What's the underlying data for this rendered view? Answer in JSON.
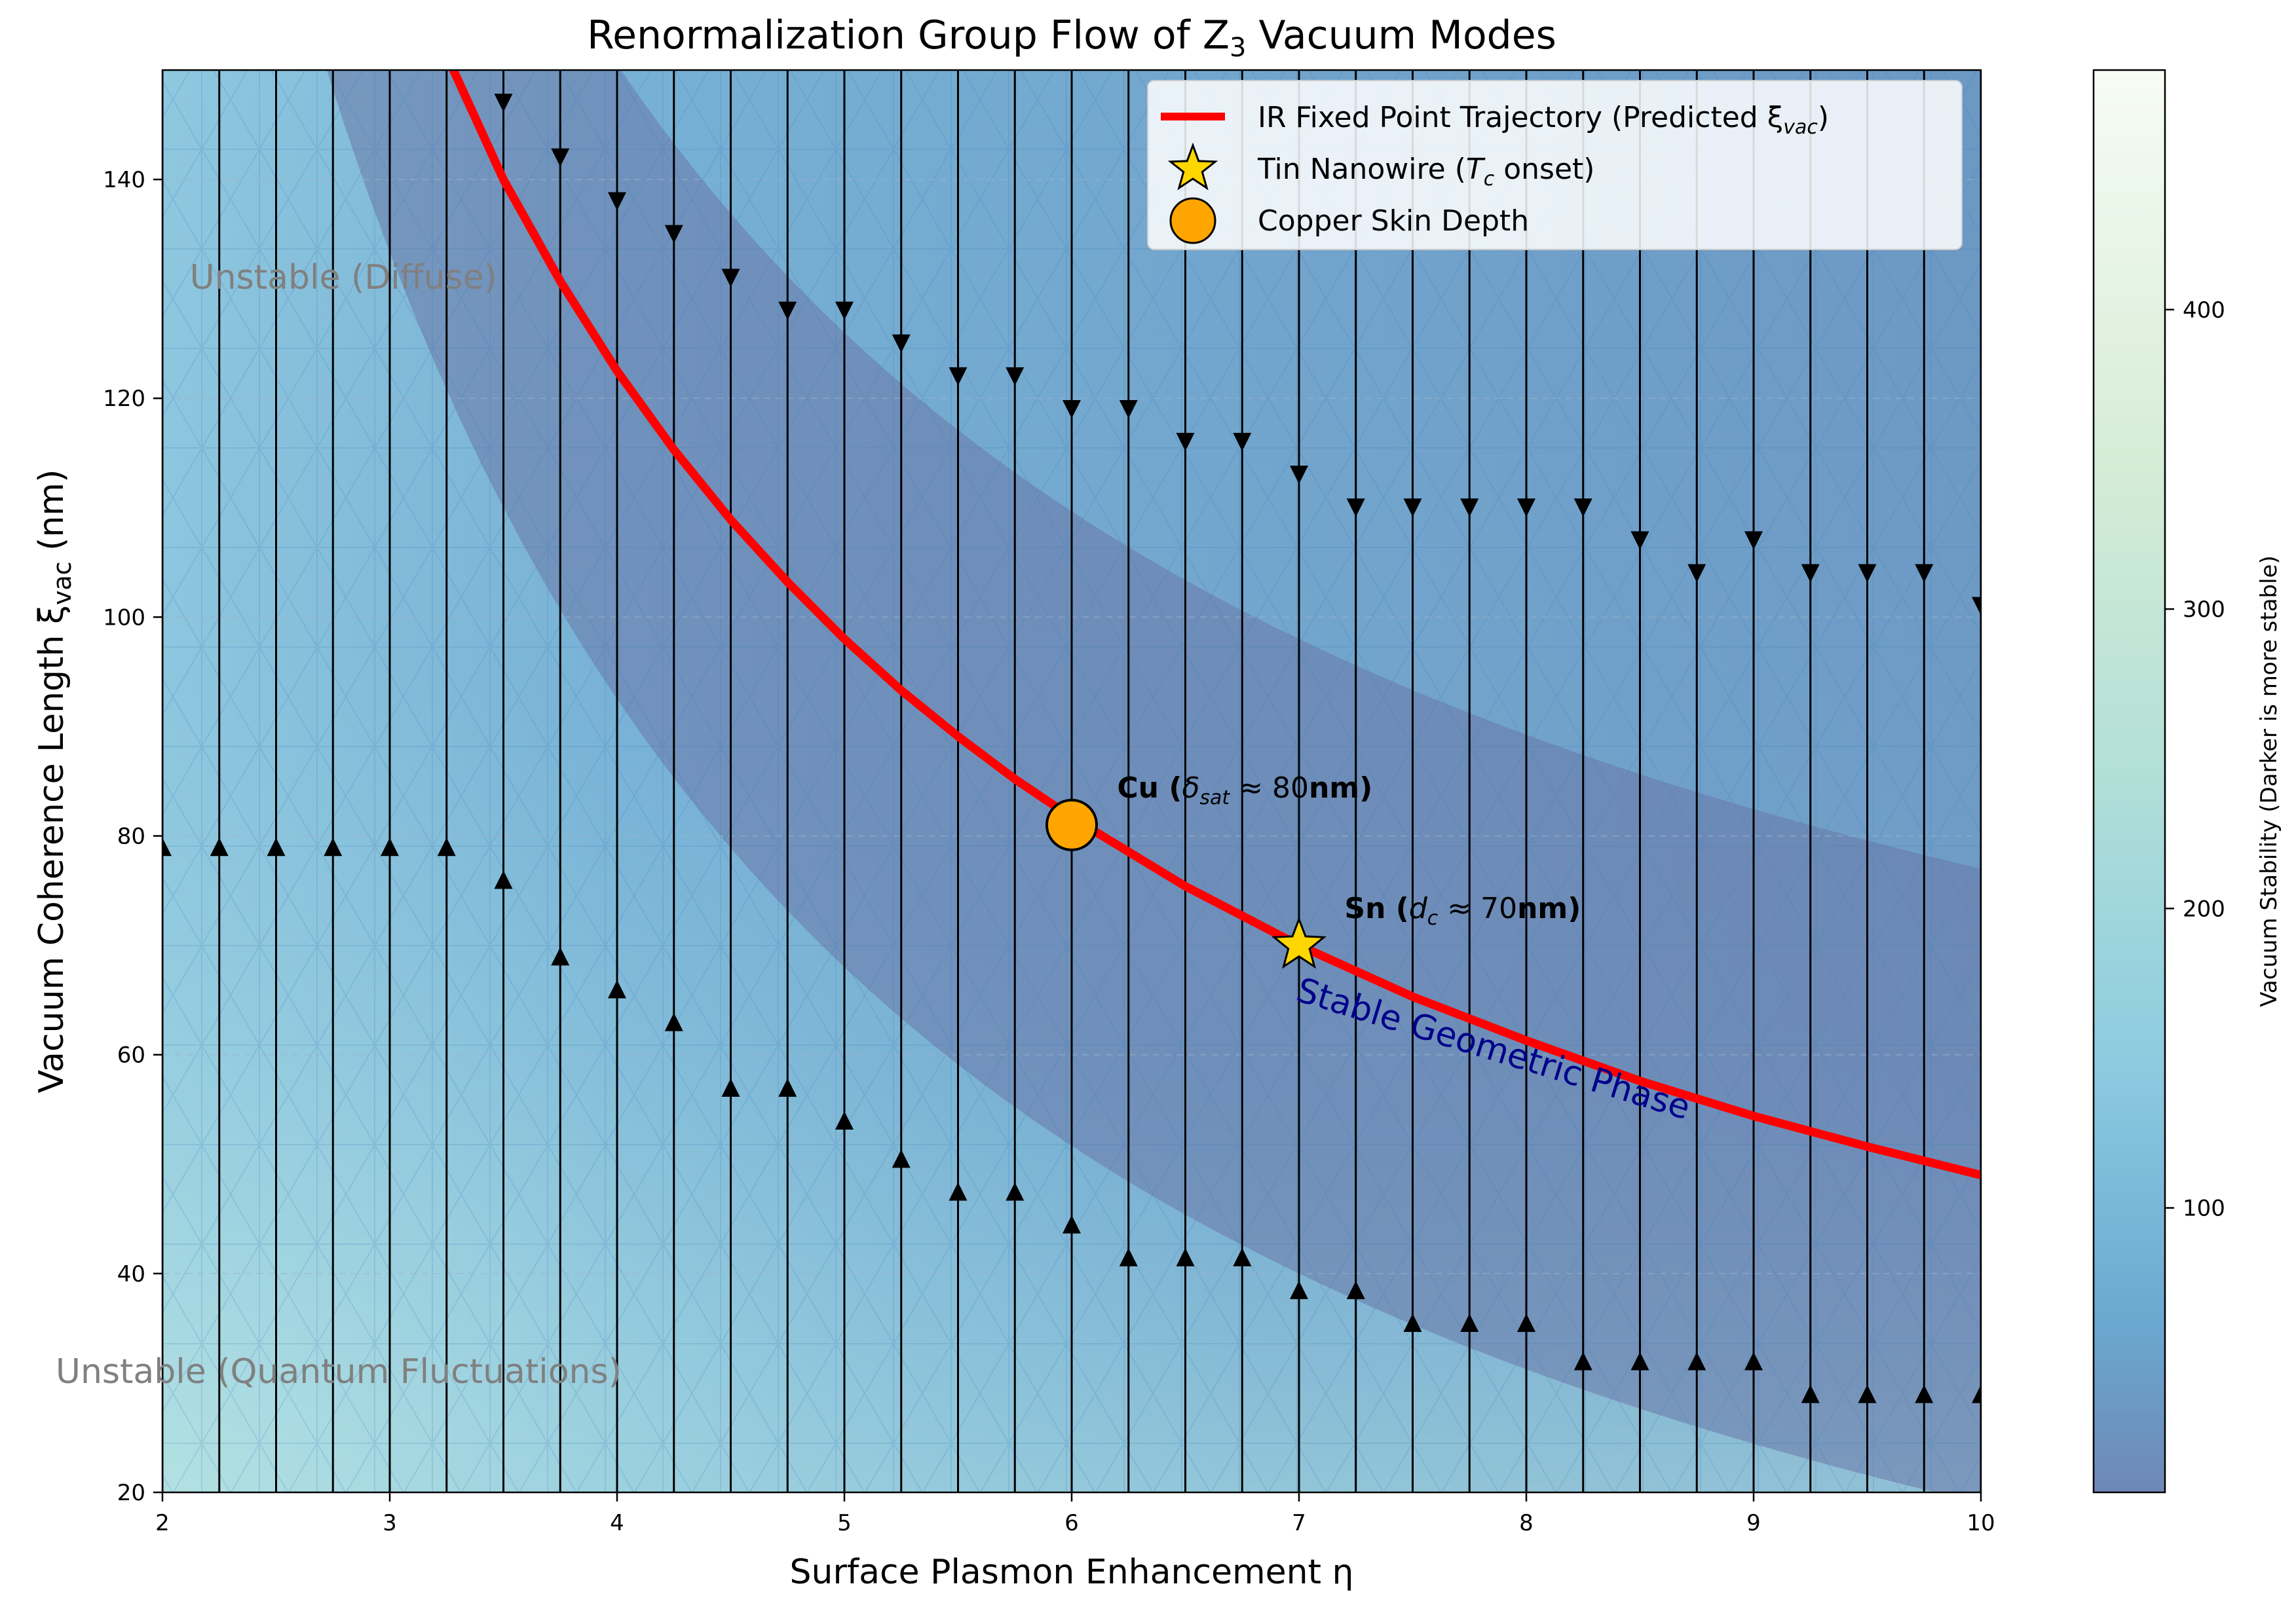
{
  "chart_data": {
    "type": "line",
    "title": "Renormalization Group Flow of Z",
    "title_sub": "3",
    "title_suffix": " Vacuum Modes",
    "xlabel": "Surface Plasmon Enhancement η",
    "ylabel": "Vacuum Coherence Length ξ",
    "ylabel_sub": "vac",
    "ylabel_suffix": " (nm)",
    "xlim": [
      2,
      10
    ],
    "ylim": [
      20,
      150
    ],
    "x_ticks": [
      "2",
      "3",
      "4",
      "5",
      "6",
      "7",
      "8",
      "9",
      "10"
    ],
    "y_ticks": [
      "20",
      "40",
      "60",
      "80",
      "100",
      "120",
      "140"
    ],
    "grid": true,
    "legend_position": "top-right",
    "series": [
      {
        "name": "IR Fixed Point Trajectory (Predicted ξ",
        "name_sub": "vac",
        "name_suffix": ")",
        "color": "#ff0000",
        "x": [
          3.28,
          3.5,
          3.75,
          4.0,
          4.25,
          4.5,
          4.75,
          5.0,
          5.25,
          5.5,
          5.75,
          6.0,
          6.5,
          7.0,
          7.5,
          8.0,
          8.5,
          9.0,
          9.5,
          10.0
        ],
        "y": [
          150,
          140.0,
          130.7,
          122.5,
          115.3,
          108.9,
          103.2,
          98.0,
          93.3,
          89.1,
          85.2,
          81.7,
          75.4,
          70.0,
          65.3,
          61.3,
          57.6,
          54.4,
          51.6,
          49.0
        ]
      }
    ],
    "points": [
      {
        "name": "Tin Nanowire (",
        "name_italic": "T",
        "name_sub": "c",
        "name_suffix": " onset)",
        "x": 7,
        "y": 70,
        "marker": "star",
        "color": "#ffd700"
      },
      {
        "name": "Copper Skin Depth",
        "x": 6,
        "y": 81,
        "marker": "circle",
        "color": "#ffa500"
      }
    ],
    "annotations": [
      {
        "id": "cu",
        "pre": "Cu (",
        "sym": "δ",
        "sub": "sat",
        "post": " ≈ 80",
        "bold_tail": "nm)",
        "x": 6.2,
        "y": 83.5
      },
      {
        "id": "sn",
        "pre": "Sn (",
        "sym": "d",
        "sub": "c",
        "post": " ≈ 70",
        "bold_tail": "nm)",
        "x": 7.2,
        "y": 72.5
      }
    ],
    "regions": [
      {
        "text": "Unstable (Diffuse)",
        "x": 2.12,
        "y": 130
      },
      {
        "text": "Unstable (Quantum Fluctuations)",
        "x": 1.53,
        "y": 30
      },
      {
        "text": "Stable Geometric Phase",
        "x": 6.98,
        "y": 65,
        "color": "#00008b",
        "rotation": 17
      }
    ],
    "flow_arrows": {
      "x": [
        2.0,
        2.25,
        2.5,
        2.75,
        3.0,
        3.25,
        3.5,
        3.75,
        4.0,
        4.25,
        4.5,
        4.75,
        5.0,
        5.25,
        5.5,
        5.75,
        6.0,
        6.25,
        6.5,
        6.75,
        7.0,
        7.25,
        7.5,
        7.75,
        8.0,
        8.25,
        8.5,
        8.75,
        9.0,
        9.25,
        9.5,
        9.75,
        10.0
      ],
      "upper_y": [
        null,
        null,
        null,
        null,
        null,
        null,
        147,
        142,
        138,
        135,
        131,
        128,
        128,
        125,
        122,
        122,
        119,
        119,
        116,
        116,
        113,
        110,
        110,
        110,
        110,
        110,
        107,
        104,
        107,
        104,
        104,
        104,
        101
      ],
      "lower_y": [
        79,
        79,
        79,
        79,
        79,
        79,
        76,
        69,
        66,
        63,
        57,
        57,
        54,
        50.5,
        47.5,
        47.5,
        44.5,
        41.5,
        41.5,
        41.5,
        38.5,
        38.5,
        35.5,
        35.5,
        35.5,
        32,
        32,
        32,
        32,
        29,
        29,
        29,
        29
      ]
    },
    "colorbar": {
      "label": "Vacuum Stability (Darker is more stable)",
      "range": [
        5,
        480
      ],
      "ticks": [
        "100",
        "200",
        "300",
        "400"
      ],
      "tick_values": [
        100,
        200,
        300,
        400
      ]
    }
  }
}
